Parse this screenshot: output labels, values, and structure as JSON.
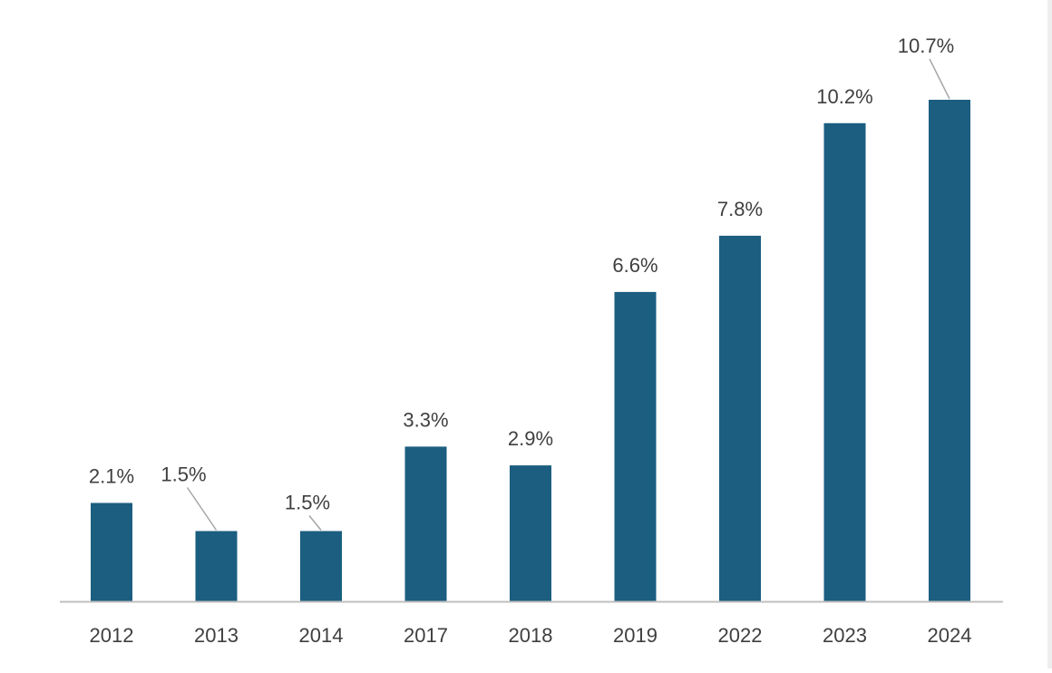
{
  "chart_data": {
    "type": "bar",
    "title": "",
    "xlabel": "",
    "ylabel": "",
    "categories": [
      "2012",
      "2013",
      "2014",
      "2017",
      "2018",
      "2019",
      "2022",
      "2023",
      "2024"
    ],
    "values": [
      2.1,
      1.5,
      1.5,
      3.3,
      2.9,
      6.6,
      7.8,
      10.2,
      10.7
    ],
    "data_labels": [
      "2.1%",
      "1.5%",
      "1.5%",
      "3.3%",
      "2.9%",
      "6.6%",
      "7.8%",
      "10.2%",
      "10.7%"
    ],
    "ylim": [
      0,
      10.7
    ],
    "grid": false,
    "legend": "none",
    "colors": {
      "bar": "#1b5e80",
      "axis": "#bfbfbf",
      "label_text": "#3f3f3f",
      "leader_line": "#a6a6a6"
    }
  }
}
